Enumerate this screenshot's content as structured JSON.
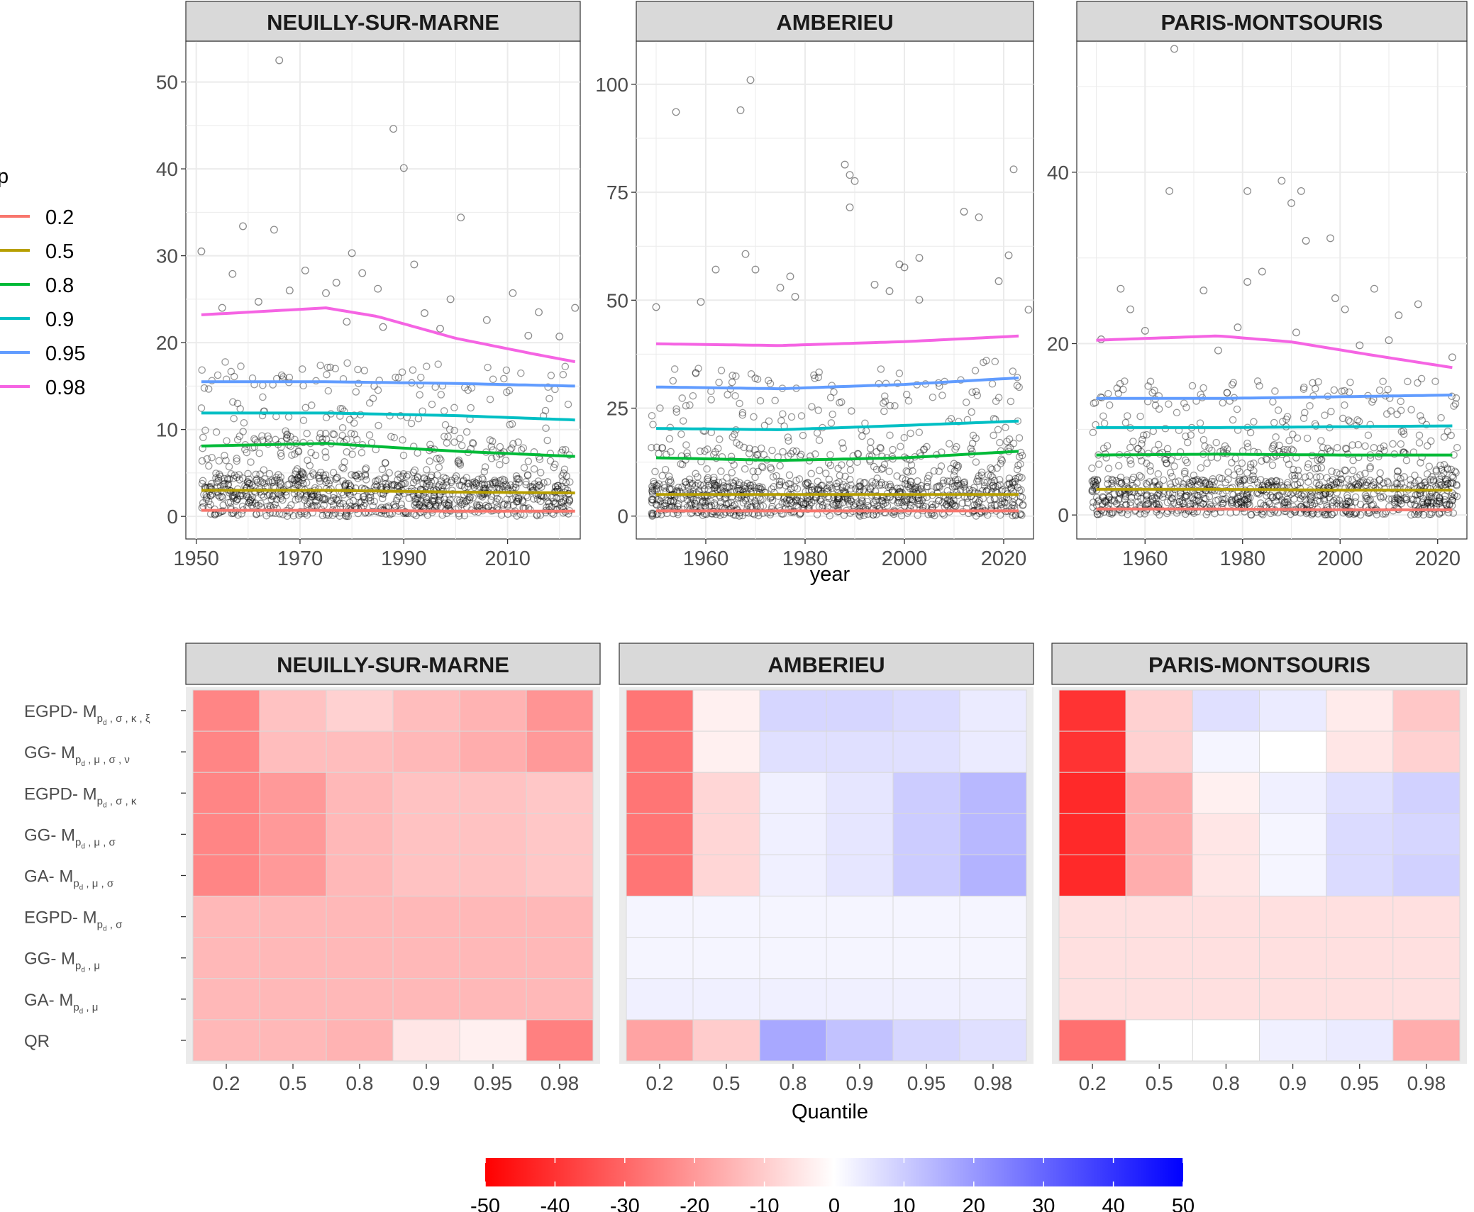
{
  "chart_data": [
    {
      "type": "scatter",
      "x_label": "year",
      "legend": {
        "title": "p",
        "placement": "left",
        "entries": [
          {
            "label": "0.2",
            "color": "#F8766D"
          },
          {
            "label": "0.5",
            "color": "#B79F00"
          },
          {
            "label": "0.8",
            "color": "#00BA38"
          },
          {
            "label": "0.9",
            "color": "#00BFC4"
          },
          {
            "label": "0.95",
            "color": "#619CFF"
          },
          {
            "label": "0.98",
            "color": "#F564E3"
          }
        ]
      },
      "point_style": {
        "shape": "open-circle",
        "color": "#000000",
        "opacity": 0.4
      },
      "grid": true,
      "panels": [
        {
          "title": "NEUILLY-SUR-MARNE",
          "xlim": [
            1948,
            2024
          ],
          "ylim": [
            -2.6,
            54.7
          ],
          "x_ticks": [
            "1950",
            "1970",
            "1990",
            "2010"
          ],
          "x_tick_values": [
            1950,
            1970,
            1990,
            2010
          ],
          "y_ticks": [
            "0",
            "10",
            "20",
            "30",
            "40",
            "50"
          ],
          "y_tick_values": [
            0,
            10,
            20,
            30,
            40,
            50
          ],
          "extreme_points": [
            [
              1966,
              52.5
            ],
            [
              1988,
              44.6
            ],
            [
              1990,
              40.1
            ],
            [
              2001,
              34.4
            ],
            [
              1959,
              33.4
            ],
            [
              1965,
              33.0
            ],
            [
              1951,
              30.5
            ],
            [
              1980,
              30.3
            ],
            [
              1992,
              29.0
            ],
            [
              1971,
              28.3
            ],
            [
              1982,
              28.0
            ],
            [
              1957,
              27.9
            ],
            [
              1977,
              26.9
            ],
            [
              1985,
              26.2
            ],
            [
              1968,
              26.0
            ],
            [
              2011,
              25.7
            ],
            [
              1999,
              25.0
            ],
            [
              1975,
              25.7
            ],
            [
              2016,
              23.5
            ],
            [
              2023,
              24.0
            ],
            [
              1955,
              24.0
            ],
            [
              1962,
              24.7
            ],
            [
              1994,
              23.4
            ],
            [
              1979,
              22.4
            ],
            [
              2006,
              22.6
            ],
            [
              1986,
              21.8
            ],
            [
              1997,
              21.6
            ],
            [
              2014,
              20.8
            ],
            [
              2020,
              20.7
            ]
          ],
          "quantile_curves": [
            {
              "p": "0.2",
              "x": [
                1951,
                1975,
                2000,
                2023
              ],
              "y": [
                0.7,
                0.7,
                0.6,
                0.6
              ]
            },
            {
              "p": "0.5",
              "x": [
                1951,
                1975,
                2000,
                2023
              ],
              "y": [
                3.0,
                3.0,
                2.8,
                2.7
              ]
            },
            {
              "p": "0.8",
              "x": [
                1951,
                1975,
                2000,
                2023
              ],
              "y": [
                8.1,
                8.4,
                7.5,
                6.9
              ]
            },
            {
              "p": "0.9",
              "x": [
                1951,
                1975,
                2000,
                2023
              ],
              "y": [
                11.9,
                11.9,
                11.6,
                11.1
              ]
            },
            {
              "p": "0.95",
              "x": [
                1951,
                1975,
                2000,
                2023
              ],
              "y": [
                15.5,
                15.5,
                15.3,
                15.0
              ]
            },
            {
              "p": "0.98",
              "x": [
                1951,
                1960,
                1975,
                1985,
                2000,
                2015,
                2023
              ],
              "y": [
                23.2,
                23.5,
                24.0,
                23.0,
                20.5,
                18.7,
                17.8
              ]
            }
          ]
        },
        {
          "title": "AMBERIEU",
          "xlim": [
            1946,
            2026
          ],
          "ylim": [
            -5.3,
            110
          ],
          "x_ticks": [
            "1960",
            "1980",
            "2000",
            "2020"
          ],
          "x_tick_values": [
            1960,
            1980,
            2000,
            2020
          ],
          "y_ticks": [
            "0",
            "25",
            "50",
            "75",
            "100"
          ],
          "y_tick_values": [
            0,
            25,
            50,
            75,
            100
          ],
          "extreme_points": [
            [
              1969,
              101.0
            ],
            [
              1954,
              93.6
            ],
            [
              1967,
              94.0
            ],
            [
              1988,
              81.4
            ],
            [
              1989,
              79.0
            ],
            [
              1990,
              77.6
            ],
            [
              2022,
              80.3
            ],
            [
              1989,
              71.5
            ],
            [
              2012,
              70.5
            ],
            [
              2015,
              69.2
            ],
            [
              1968,
              60.7
            ],
            [
              2003,
              59.8
            ],
            [
              2021,
              60.4
            ],
            [
              1999,
              58.3
            ],
            [
              1977,
              55.5
            ],
            [
              1970,
              57.1
            ],
            [
              1962,
              57.1
            ],
            [
              2000,
              57.6
            ],
            [
              1994,
              53.6
            ],
            [
              2019,
              54.4
            ],
            [
              1975,
              52.9
            ],
            [
              1997,
              52.1
            ],
            [
              1950,
              48.4
            ],
            [
              1959,
              49.6
            ],
            [
              1978,
              50.8
            ],
            [
              2025,
              47.8
            ],
            [
              2003,
              50.1
            ]
          ],
          "quantile_curves": [
            {
              "p": "0.2",
              "x": [
                1950,
                1975,
                2000,
                2023
              ],
              "y": [
                1.2,
                1.2,
                1.2,
                1.2
              ]
            },
            {
              "p": "0.5",
              "x": [
                1950,
                1975,
                2000,
                2023
              ],
              "y": [
                5.0,
                5.0,
                5.0,
                5.0
              ]
            },
            {
              "p": "0.8",
              "x": [
                1950,
                1975,
                2000,
                2023
              ],
              "y": [
                13.5,
                12.9,
                13.5,
                15.0
              ]
            },
            {
              "p": "0.9",
              "x": [
                1950,
                1975,
                2000,
                2023
              ],
              "y": [
                20.3,
                20.0,
                21.0,
                22.0
              ]
            },
            {
              "p": "0.95",
              "x": [
                1950,
                1975,
                2000,
                2023
              ],
              "y": [
                29.9,
                29.5,
                30.5,
                32.0
              ]
            },
            {
              "p": "0.98",
              "x": [
                1950,
                1975,
                2000,
                2023
              ],
              "y": [
                39.9,
                39.5,
                40.4,
                41.7
              ]
            }
          ]
        },
        {
          "title": "PARIS-MONTSOURIS",
          "xlim": [
            1946,
            2026
          ],
          "ylim": [
            -2.8,
            55.3
          ],
          "x_ticks": [
            "1960",
            "1980",
            "2000",
            "2020"
          ],
          "x_tick_values": [
            1960,
            1980,
            2000,
            2020
          ],
          "y_ticks": [
            "0",
            "20",
            "40"
          ],
          "y_tick_values": [
            0,
            20,
            40
          ],
          "extreme_points": [
            [
              1966,
              54.4
            ],
            [
              1988,
              39.0
            ],
            [
              1992,
              37.8
            ],
            [
              1965,
              37.8
            ],
            [
              1981,
              37.8
            ],
            [
              1990,
              36.4
            ],
            [
              1998,
              32.3
            ],
            [
              1993,
              32.0
            ],
            [
              1984,
              28.4
            ],
            [
              1981,
              27.2
            ],
            [
              2007,
              26.4
            ],
            [
              1955,
              26.4
            ],
            [
              1972,
              26.2
            ],
            [
              2016,
              24.6
            ],
            [
              1999,
              25.3
            ],
            [
              1957,
              24.0
            ],
            [
              2001,
              24.0
            ],
            [
              2012,
              23.3
            ],
            [
              1960,
              21.5
            ],
            [
              1979,
              21.9
            ],
            [
              1991,
              21.3
            ],
            [
              2004,
              19.8
            ],
            [
              1951,
              20.5
            ],
            [
              1975,
              19.2
            ],
            [
              2023,
              18.4
            ],
            [
              2010,
              20.4
            ]
          ],
          "quantile_curves": [
            {
              "p": "0.2",
              "x": [
                1950,
                1975,
                2000,
                2023
              ],
              "y": [
                0.7,
                0.7,
                0.6,
                0.6
              ]
            },
            {
              "p": "0.5",
              "x": [
                1950,
                1975,
                2000,
                2023
              ],
              "y": [
                3.0,
                3.0,
                2.9,
                2.9
              ]
            },
            {
              "p": "0.8",
              "x": [
                1950,
                1975,
                2000,
                2023
              ],
              "y": [
                7.0,
                7.1,
                7.0,
                7.0
              ]
            },
            {
              "p": "0.9",
              "x": [
                1950,
                1975,
                2000,
                2023
              ],
              "y": [
                10.2,
                10.2,
                10.3,
                10.4
              ]
            },
            {
              "p": "0.95",
              "x": [
                1950,
                1975,
                2000,
                2023
              ],
              "y": [
                13.6,
                13.6,
                13.8,
                14.0
              ]
            },
            {
              "p": "0.98",
              "x": [
                1950,
                1960,
                1975,
                1990,
                2005,
                2023
              ],
              "y": [
                20.4,
                20.6,
                20.9,
                20.2,
                18.8,
                17.2
              ]
            }
          ]
        }
      ]
    },
    {
      "type": "heatmap",
      "x_label": "Quantile",
      "x_categories": [
        "0.2",
        "0.5",
        "0.8",
        "0.9",
        "0.95",
        "0.98"
      ],
      "y_categories": [
        {
          "prefix": "EGPD- M",
          "params": "σ , κ , ξ"
        },
        {
          "prefix": "GG- M",
          "params": "μ , σ , ν"
        },
        {
          "prefix": "EGPD- M",
          "params": "σ , κ"
        },
        {
          "prefix": "GG- M",
          "params": "μ , σ"
        },
        {
          "prefix": "GA- M",
          "params": "μ , σ"
        },
        {
          "prefix": "EGPD- M",
          "params": "σ"
        },
        {
          "prefix": "GG- M",
          "params": "μ"
        },
        {
          "prefix": "GA- M",
          "params": "μ"
        },
        {
          "prefix": "QR",
          "params": ""
        }
      ],
      "subscript_main": "p",
      "subscript_sub": "d",
      "colorbar": {
        "min": -50,
        "max": 50,
        "low_color": "#FF0000",
        "mid_color": "#FFFFFF",
        "high_color": "#0000FF",
        "ticks": [
          "-50",
          "-40",
          "-30",
          "-20",
          "-10",
          "0",
          "10",
          "20",
          "30",
          "40",
          "50"
        ],
        "tick_values": [
          -50,
          -40,
          -30,
          -20,
          -10,
          0,
          10,
          20,
          30,
          40,
          50
        ]
      },
      "panels": [
        {
          "title": "NEUILLY-SUR-MARNE",
          "values": [
            [
              -24,
              -12,
              -9,
              -13,
              -15,
              -21
            ],
            [
              -24,
              -13,
              -13,
              -14,
              -16,
              -20
            ],
            [
              -24,
              -20,
              -14,
              -12,
              -12,
              -11
            ],
            [
              -24,
              -20,
              -14,
              -12,
              -12,
              -11
            ],
            [
              -24,
              -20,
              -14,
              -12,
              -12,
              -11
            ],
            [
              -14,
              -14,
              -14,
              -14,
              -14,
              -14
            ],
            [
              -14,
              -14,
              -14,
              -14,
              -14,
              -14
            ],
            [
              -14,
              -14,
              -14,
              -14,
              -14,
              -14
            ],
            [
              -14,
              -14,
              -15,
              -5,
              -3,
              -25
            ]
          ]
        },
        {
          "title": "AMBERIEU",
          "values": [
            [
              -27,
              -3,
              8,
              8,
              7,
              4
            ],
            [
              -27,
              -3,
              6,
              6,
              6,
              4
            ],
            [
              -27,
              -8,
              3,
              5,
              10,
              14
            ],
            [
              -27,
              -8,
              3,
              5,
              10,
              14
            ],
            [
              -27,
              -8,
              3,
              5,
              10,
              15
            ],
            [
              2,
              2,
              2,
              2,
              2,
              2
            ],
            [
              2,
              2,
              2,
              2,
              2,
              2
            ],
            [
              3,
              3,
              3,
              3,
              3,
              3
            ],
            [
              -18,
              -10,
              17,
              12,
              8,
              6
            ]
          ]
        },
        {
          "title": "PARIS-MONTSOURIS",
          "values": [
            [
              -40,
              -9,
              6,
              4,
              -4,
              -11
            ],
            [
              -40,
              -9,
              2,
              0,
              -5,
              -9
            ],
            [
              -42,
              -16,
              -3,
              3,
              6,
              9
            ],
            [
              -42,
              -16,
              -5,
              2,
              7,
              8
            ],
            [
              -42,
              -16,
              -5,
              2,
              7,
              9
            ],
            [
              -6,
              -6,
              -6,
              -6,
              -6,
              -6
            ],
            [
              -6,
              -6,
              -6,
              -6,
              -6,
              -6
            ],
            [
              -6,
              -6,
              -6,
              -6,
              -6,
              -6
            ],
            [
              -28,
              0,
              0,
              3,
              4,
              -16
            ]
          ]
        }
      ]
    }
  ]
}
